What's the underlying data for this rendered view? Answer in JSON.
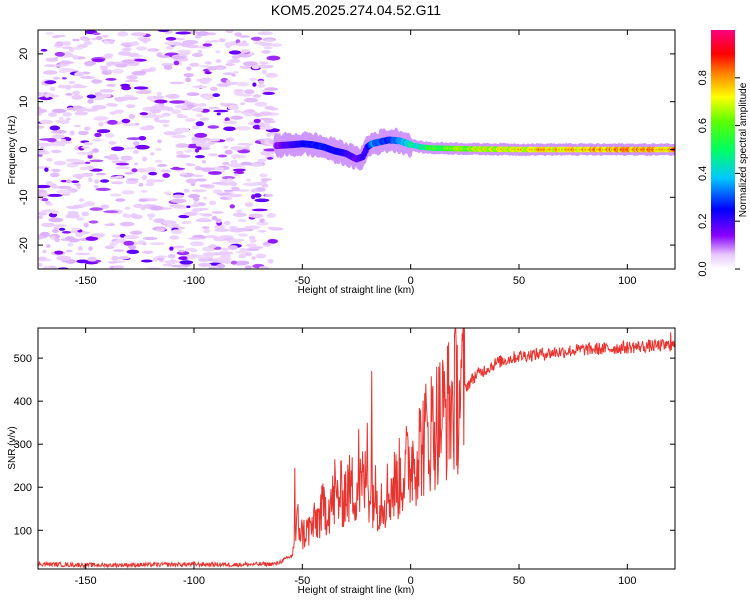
{
  "title": "KOM5.2025.274.04.52.G11",
  "chart_data": [
    {
      "type": "heatmap",
      "title": "",
      "xlabel": "Height of straight line (km)",
      "ylabel": "Frequency (Hz)",
      "xlim": [
        -172,
        122
      ],
      "ylim": [
        -25,
        25
      ],
      "xticks": [
        -150,
        -100,
        -50,
        0,
        50,
        100
      ],
      "yticks": [
        -20,
        -10,
        0,
        10,
        20
      ],
      "colorbar": {
        "label": "Normalized spectral amplitude",
        "range": [
          0,
          1
        ],
        "ticks": [
          0.0,
          0.2,
          0.4,
          0.6,
          0.8
        ],
        "colormap": "rainbow (purple-blue-cyan-green-yellow-red-magenta)"
      },
      "noise_region_km": [
        -172,
        -62
      ],
      "signal_track": {
        "x": [
          -62,
          -55,
          -50,
          -45,
          -40,
          -35,
          -30,
          -25,
          -22,
          -20,
          -18,
          -15,
          -10,
          -5,
          0,
          5,
          10,
          20,
          30,
          50,
          70,
          100,
          122
        ],
        "freq": [
          0.8,
          1.0,
          1.2,
          1.0,
          0.5,
          -0.3,
          -0.8,
          -2.0,
          -1.5,
          0.5,
          1.2,
          1.5,
          2.0,
          1.8,
          1.0,
          0.5,
          0.3,
          0.2,
          0.1,
          0.0,
          0.0,
          0.0,
          0.0
        ],
        "amplitude": [
          0.15,
          0.25,
          0.28,
          0.3,
          0.3,
          0.28,
          0.25,
          0.2,
          0.22,
          0.25,
          0.4,
          0.35,
          0.3,
          0.4,
          0.5,
          0.55,
          0.6,
          0.7,
          0.75,
          0.8,
          0.85,
          0.9,
          0.9
        ]
      }
    },
    {
      "type": "line",
      "title": "",
      "xlabel": "Height of straight line (km)",
      "ylabel": "SNR (v/v)",
      "xlim": [
        -172,
        122
      ],
      "ylim": [
        10,
        570
      ],
      "xticks": [
        -150,
        -100,
        -50,
        0,
        50,
        100
      ],
      "yticks": [
        100,
        200,
        300,
        400,
        500
      ],
      "color": "#e8332e",
      "series": [
        {
          "name": "SNR",
          "x": [
            -172,
            -160,
            -140,
            -120,
            -100,
            -80,
            -62,
            -55,
            -52,
            -50,
            -45,
            -40,
            -35,
            -30,
            -25,
            -20,
            -15,
            -10,
            -5,
            0,
            5,
            10,
            15,
            20,
            25,
            30,
            40,
            50,
            60,
            70,
            80,
            90,
            100,
            110,
            122
          ],
          "values": [
            22,
            20,
            19,
            20,
            21,
            20,
            22,
            40,
            120,
            90,
            110,
            150,
            170,
            190,
            200,
            210,
            170,
            190,
            220,
            260,
            300,
            340,
            370,
            400,
            430,
            460,
            490,
            505,
            510,
            515,
            520,
            522,
            525,
            528,
            530
          ],
          "spikes": [
            {
              "x": -53.5,
              "y": 245
            },
            {
              "x": -35,
              "y": 265
            },
            {
              "x": -24,
              "y": 335
            },
            {
              "x": -20,
              "y": 350
            },
            {
              "x": -18,
              "y": 470
            },
            {
              "x": 10,
              "y": 420
            },
            {
              "x": 120,
              "y": 560
            }
          ]
        }
      ]
    }
  ]
}
